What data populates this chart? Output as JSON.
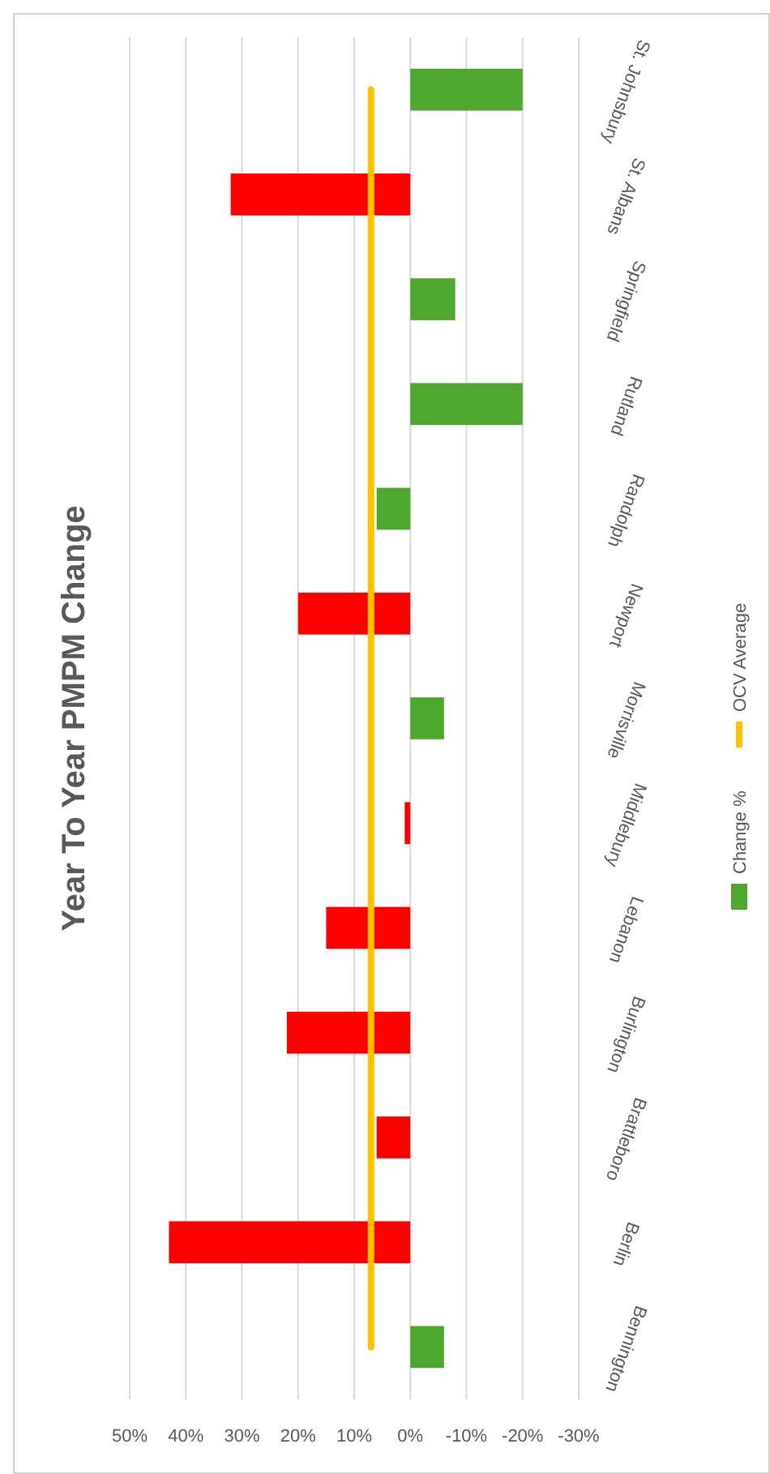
{
  "chart_data": {
    "type": "bar",
    "orientation": "horizontal",
    "title": "Year To Year PMPM Change",
    "categories": [
      "St. Johnsbury",
      "St. Albans",
      "Springfield",
      "Rutland",
      "Randolph",
      "Newport",
      "Morrisville",
      "Middlebury",
      "Lebanon",
      "Burlington",
      "Brattleboro",
      "Berlin",
      "Bennington"
    ],
    "series": [
      {
        "name": "Change %",
        "color": "#4ea72e",
        "colors": [
          "#4ea72e",
          "#ff0000",
          "#4ea72e",
          "#4ea72e",
          "#4ea72e",
          "#ff0000",
          "#4ea72e",
          "#ff0000",
          "#ff0000",
          "#ff0000",
          "#ff0000",
          "#ff0000",
          "#4ea72e"
        ],
        "values": [
          -20,
          32,
          -8,
          -20,
          6,
          20,
          -6,
          1,
          15,
          22,
          6,
          43,
          -6
        ]
      },
      {
        "name": "OCV Average",
        "type": "line",
        "color": "#ffc000",
        "values": [
          7,
          7,
          7,
          7,
          7,
          7,
          7,
          7,
          7,
          7,
          7,
          7,
          7
        ]
      }
    ],
    "xlim": [
      50,
      -30
    ],
    "xticks": [
      {
        "value": 50,
        "label": "50%"
      },
      {
        "value": 40,
        "label": "40%"
      },
      {
        "value": 30,
        "label": "30%"
      },
      {
        "value": 20,
        "label": "20%"
      },
      {
        "value": 10,
        "label": "10%"
      },
      {
        "value": 0,
        "label": "0%"
      },
      {
        "value": -10,
        "label": "-10%"
      },
      {
        "value": -20,
        "label": "-20%"
      },
      {
        "value": -30,
        "label": "-30%"
      }
    ],
    "grid": "x",
    "legend": "right"
  }
}
